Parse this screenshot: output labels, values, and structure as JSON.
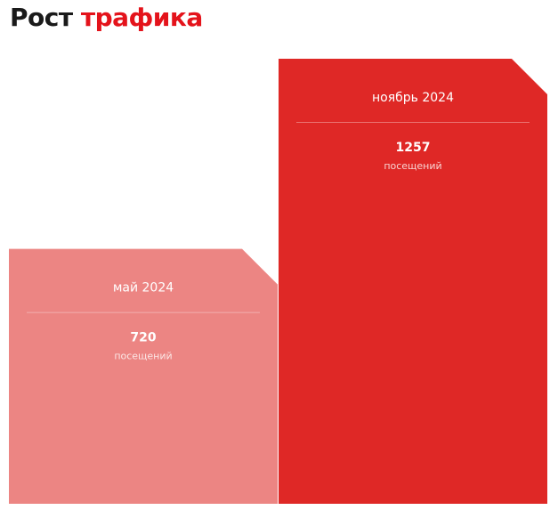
{
  "title": {
    "part1": "Рост",
    "part2": "трафика"
  },
  "colors": {
    "title_text": "#1a1a1a",
    "title_accent": "#e4131b"
  },
  "chart_data": {
    "type": "bar",
    "categories": [
      "май 2024",
      "ноябрь 2024"
    ],
    "values": [
      720,
      1257
    ],
    "unit": "посещений",
    "colors": [
      "#ec8583",
      "#df2826"
    ]
  }
}
